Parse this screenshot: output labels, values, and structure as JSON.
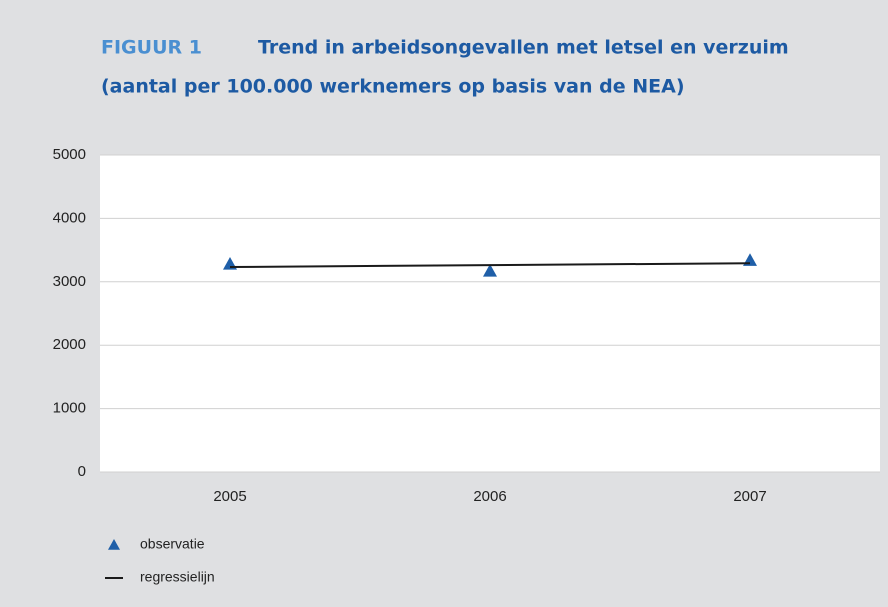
{
  "chart_data": {
    "type": "line",
    "label": "FIGUUR 1",
    "title": [
      "Trend in arbeidsongevallen met letsel en verzuim",
      "(aantal per 100.000 werknemers op basis van de NEA)"
    ],
    "categories": [
      "2005",
      "2006",
      "2007"
    ],
    "series": [
      {
        "name": "observatie",
        "color": "#1f5fa8",
        "style": "marker",
        "values": [
          3280,
          3170,
          3340
        ]
      },
      {
        "name": "regressielijn",
        "color": "#1a1a1a",
        "style": "line",
        "values": [
          3233,
          3263,
          3293
        ]
      }
    ],
    "ylim": [
      0,
      5000
    ],
    "yticks": [
      0,
      1000,
      2000,
      3000,
      4000,
      5000
    ],
    "grid": true
  }
}
